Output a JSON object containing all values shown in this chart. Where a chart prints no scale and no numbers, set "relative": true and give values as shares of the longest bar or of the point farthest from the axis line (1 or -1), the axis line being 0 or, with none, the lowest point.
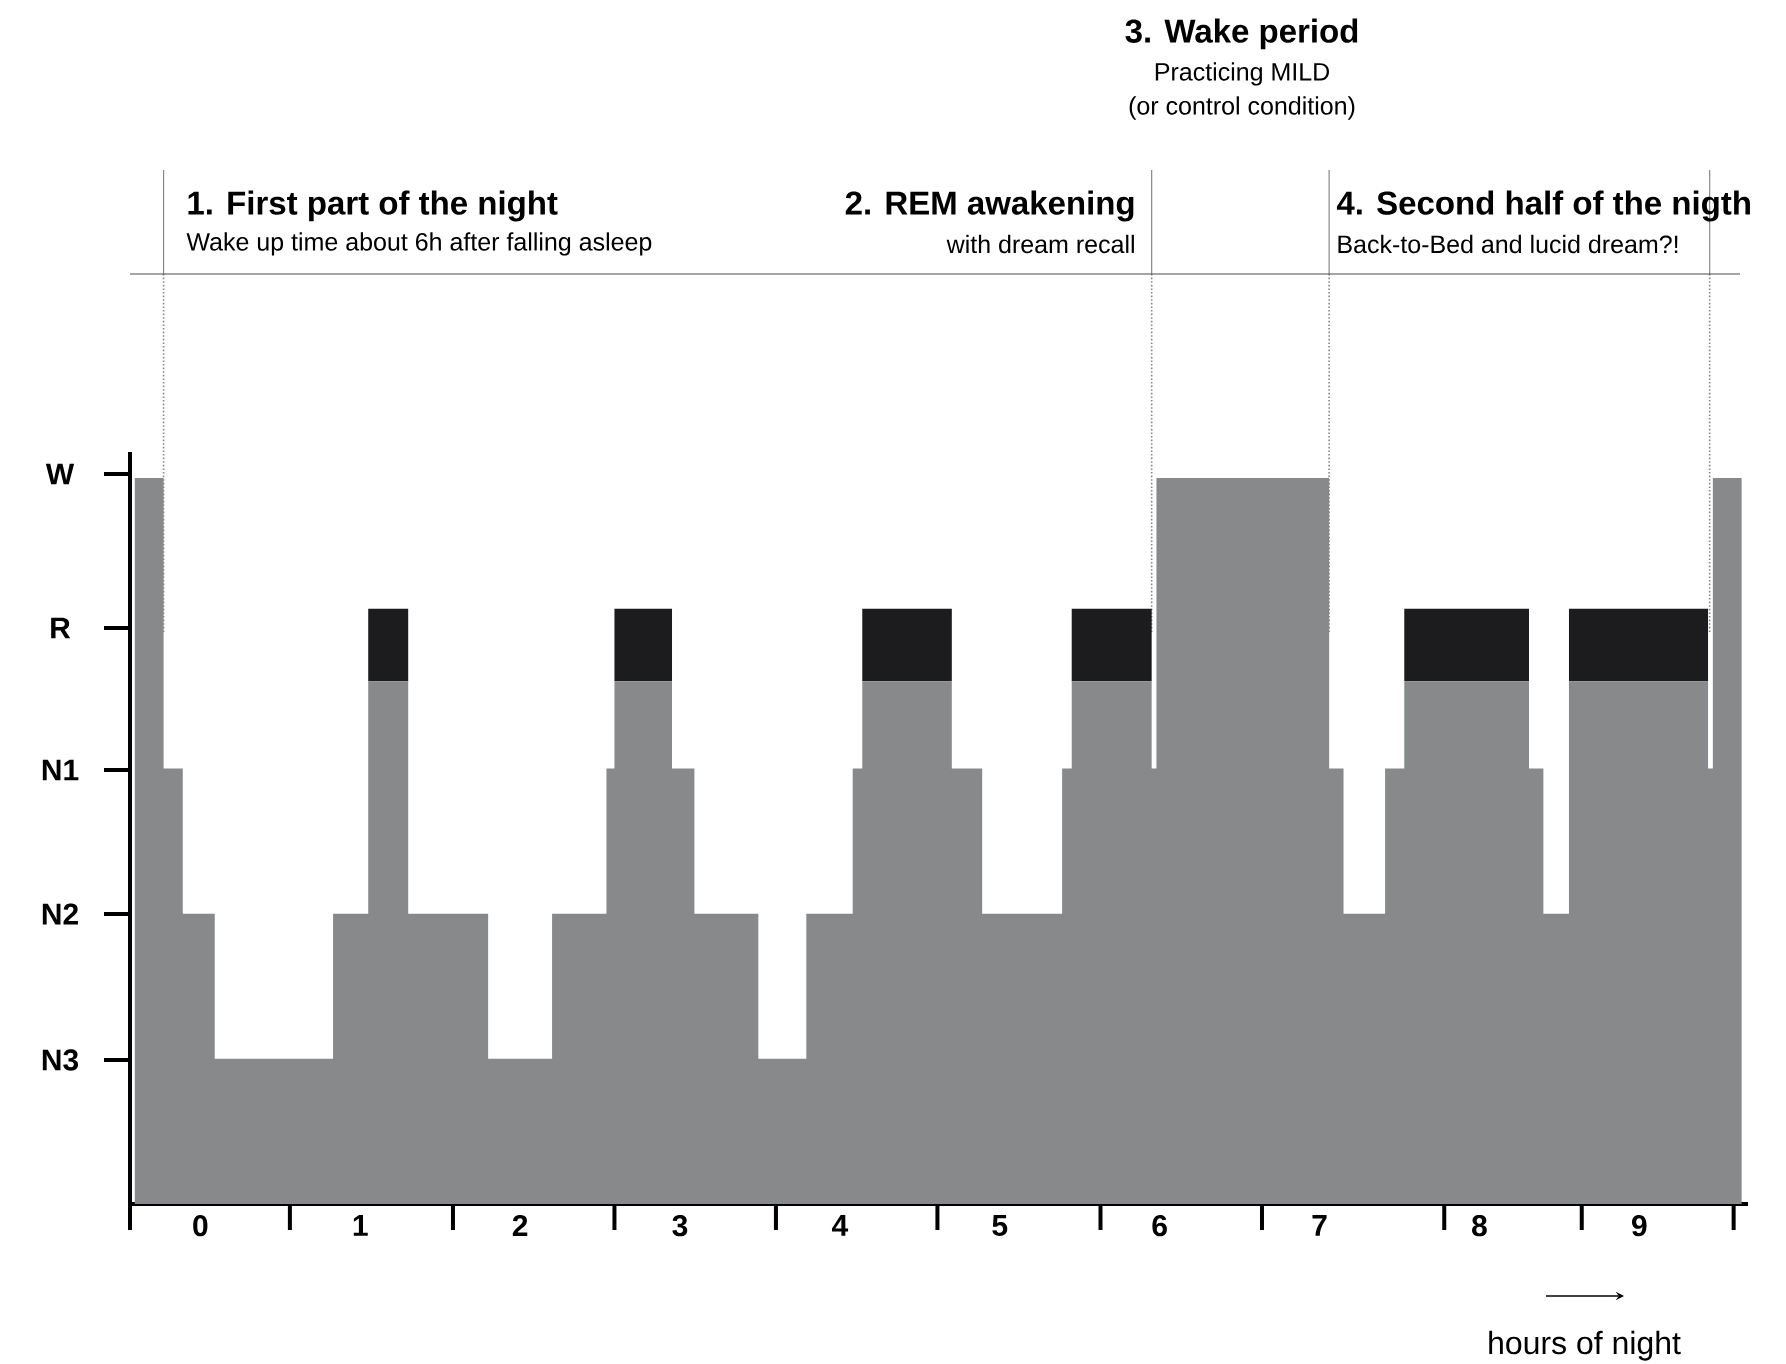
{
  "chart_data": {
    "type": "area",
    "stacked": true,
    "relative": true,
    "xlabel": "hours of night",
    "x": [
      -0.41,
      -0.23,
      -0.11,
      0.09,
      0.83,
      1.05,
      1.3,
      1.8,
      2.2,
      2.54,
      2.59,
      2.95,
      3.09,
      3.49,
      3.79,
      4.08,
      4.14,
      4.7,
      4.89,
      5.39,
      5.45,
      5.95,
      5.98,
      7.06,
      7.15,
      7.41,
      7.53,
      8.31,
      8.4,
      8.56,
      9.43,
      9.46,
      9.64
    ],
    "series": [
      {
        "color": "#88898b",
        "values": [
          1,
          0.6,
          0.4,
          0.2,
          0.4,
          0.72,
          0.4,
          0.2,
          0.4,
          0.6,
          0.72,
          0.6,
          0.4,
          0.2,
          0.4,
          0.6,
          0.72,
          0.6,
          0.4,
          0.6,
          0.72,
          0.6,
          1,
          0.6,
          0.4,
          0.6,
          0.72,
          0.6,
          0.4,
          0.72,
          0.6,
          1,
          1
        ]
      },
      {
        "color": "#1c1b1d",
        "values": [
          0,
          0,
          0,
          0,
          0,
          0.1,
          0,
          0,
          0,
          0,
          0.1,
          0,
          0,
          0,
          0,
          0,
          0.1,
          0,
          0,
          0,
          0.1,
          0,
          0,
          0,
          0,
          0,
          0.1,
          0,
          0,
          0.1,
          0,
          0,
          0
        ]
      }
    ],
    "xlim": [
      -0.44,
      9.68
    ],
    "xticks": [
      {
        "value": 0,
        "label": "0"
      },
      {
        "value": 1,
        "label": "1"
      },
      {
        "value": 2,
        "label": "2"
      },
      {
        "value": 3,
        "label": "3"
      },
      {
        "value": 4,
        "label": "4"
      },
      {
        "value": 5,
        "label": "5"
      },
      {
        "value": 6,
        "label": "6"
      },
      {
        "value": 7,
        "label": "7"
      },
      {
        "value": 8,
        "label": "8"
      },
      {
        "value": 9,
        "label": "9"
      },
      {
        "value": -0.44,
        "label": null
      },
      {
        "value": 0.56,
        "label": null
      },
      {
        "value": 1.58,
        "label": null
      },
      {
        "value": 2.59,
        "label": null
      },
      {
        "value": 3.6,
        "label": null
      },
      {
        "value": 4.61,
        "label": null
      },
      {
        "value": 5.63,
        "label": null
      },
      {
        "value": 6.64,
        "label": null
      },
      {
        "value": 7.78,
        "label": null
      },
      {
        "value": 8.64,
        "label": null
      },
      {
        "value": 9.59,
        "label": null
      }
    ],
    "ref_lines": [
      {
        "axis": "x",
        "value": -0.23,
        "color": "#888888",
        "line_style": "dotted"
      },
      {
        "axis": "x",
        "value": 5.95,
        "color": "#888888",
        "line_style": "dotted"
      },
      {
        "axis": "x",
        "value": 7.06,
        "color": "#888888",
        "line_style": "dotted"
      },
      {
        "axis": "x",
        "value": 9.44,
        "color": "#888888",
        "line_style": "dotted"
      }
    ],
    "annotations": [
      "1. First part of the night",
      "Wake up time about 6h after falling asleep",
      "2. REM awakening",
      "with dream recall",
      "3. Wake period",
      "Practicing MILD",
      "(or control condition)",
      "4. Second half of the nigth",
      "Back-to-Bed and lucid dream?!",
      "W",
      "R",
      "N1",
      "N2",
      "N3"
    ]
  }
}
